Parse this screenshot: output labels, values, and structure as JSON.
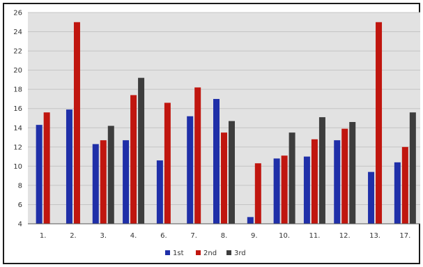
{
  "chart_data": {
    "type": "bar",
    "categories": [
      "1.",
      "2.",
      "3.",
      "4.",
      "6.",
      "7.",
      "8.",
      "9.",
      "10.",
      "11.",
      "12.",
      "13.",
      "17."
    ],
    "series": [
      {
        "name": "1st",
        "color": "#1f2fa8",
        "values": [
          14.3,
          15.9,
          12.3,
          12.7,
          10.6,
          15.2,
          17.0,
          4.7,
          10.8,
          11.0,
          12.7,
          9.4,
          10.4
        ]
      },
      {
        "name": "2nd",
        "color": "#c0160f",
        "values": [
          15.6,
          25.0,
          12.7,
          17.4,
          16.6,
          18.2,
          13.5,
          10.3,
          11.1,
          12.8,
          13.9,
          25.0,
          12.0
        ]
      },
      {
        "name": "3rd",
        "color": "#3d3d3d",
        "values": [
          null,
          null,
          14.2,
          19.2,
          null,
          null,
          14.7,
          null,
          13.5,
          15.1,
          14.6,
          null,
          15.6
        ]
      }
    ],
    "y_ticks": [
      4,
      6,
      8,
      10,
      12,
      14,
      16,
      18,
      20,
      22,
      24,
      26
    ],
    "ylim": [
      4,
      26
    ],
    "grid": true,
    "legend": "bottom",
    "title": "",
    "xlabel": "",
    "ylabel": ""
  }
}
